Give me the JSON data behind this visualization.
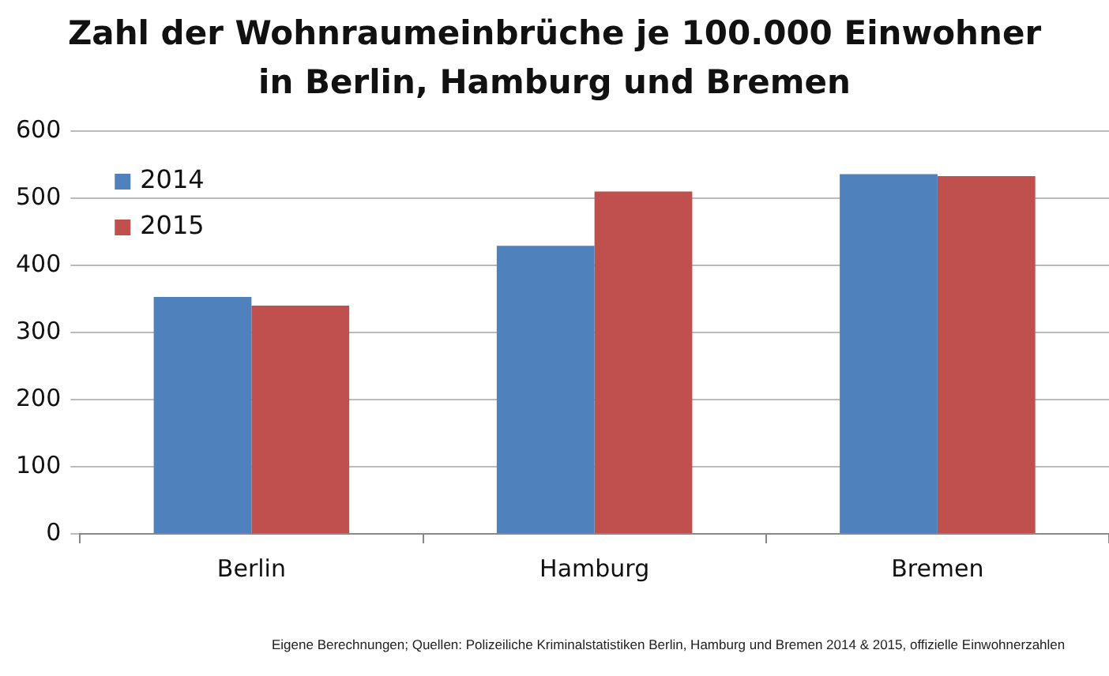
{
  "chart_data": {
    "type": "bar",
    "title": "Zahl der Wohnraumeinbrüche je 100.000 Einwohner\nin Berlin, Hamburg und Bremen",
    "categories": [
      "Berlin",
      "Hamburg",
      "Bremen"
    ],
    "series": [
      {
        "name": "2014",
        "color": "#4f81bd",
        "values": [
          353,
          429,
          536
        ]
      },
      {
        "name": "2015",
        "color": "#c0504d",
        "values": [
          340,
          510,
          533
        ]
      }
    ],
    "ylim": [
      0,
      600
    ],
    "yticks": [
      0,
      100,
      200,
      300,
      400,
      500,
      600
    ],
    "grid": "y",
    "legend": "top left",
    "annotations": [
      "Eigene Berechnungen;  Quellen: Polizeiliche Kriminalstatistiken Berlin, Hamburg und Bremen  2014 & 2015, offizielle Einwohnerzahlen"
    ]
  }
}
